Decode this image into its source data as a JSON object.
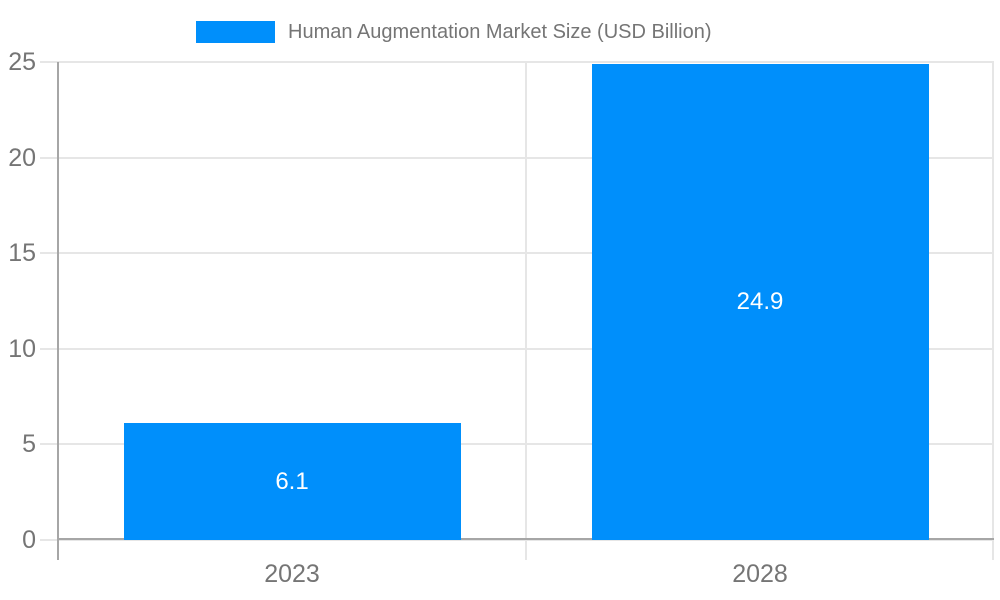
{
  "chart_data": {
    "type": "bar",
    "title": "Human Augmentation Market Size (USD Billion)",
    "legend": {
      "label": "Human Augmentation Market Size (USD Billion)",
      "position": "top",
      "marker": "rectangle"
    },
    "categories": [
      "2023",
      "2028"
    ],
    "series": [
      {
        "name": "Human Augmentation Market Size (USD Billion)",
        "values": [
          6.1,
          24.9
        ],
        "data_labels": [
          "6.1",
          "24.9"
        ],
        "color": "#008FFB"
      }
    ],
    "xlabel": "",
    "ylabel": "",
    "y_axis": {
      "min": 0,
      "max": 25,
      "tick_step": 5,
      "ticks": [
        0,
        5,
        10,
        15,
        20,
        25
      ]
    },
    "grid": true,
    "data_labels_inside_bars": true,
    "colors": {
      "bar": "#008FFB",
      "gridline": "#e6e6e6",
      "axis_line": "#a6a6a6",
      "axis_text": "#757575",
      "bar_label_text": "#ffffff",
      "background": "#ffffff"
    }
  }
}
